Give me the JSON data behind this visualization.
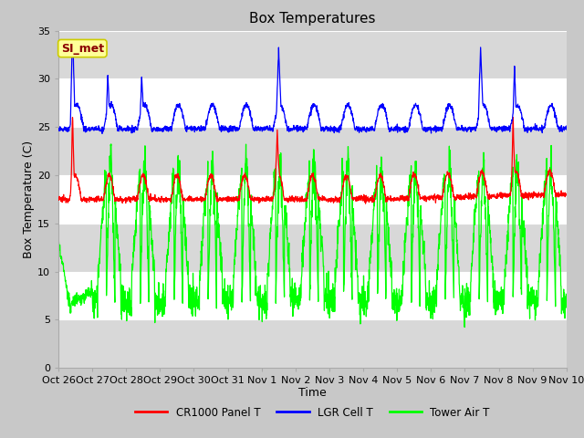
{
  "title": "Box Temperatures",
  "xlabel": "Time",
  "ylabel": "Box Temperature (C)",
  "ylim": [
    0,
    35
  ],
  "yticks": [
    0,
    5,
    10,
    15,
    20,
    25,
    30,
    35
  ],
  "fig_bg": "#c8c8c8",
  "axes_bg": "#d8d8d8",
  "band_colors": [
    "#e8e8e8",
    "#c8c8c8"
  ],
  "legend_labels": [
    "CR1000 Panel T",
    "LGR Cell T",
    "Tower Air T"
  ],
  "legend_colors": [
    "red",
    "blue",
    "#00ff00"
  ],
  "watermark_text": "SI_met",
  "watermark_fg": "#8B0000",
  "watermark_bg": "#FFFF99",
  "watermark_border": "#CCCC00",
  "tick_labels": [
    "Oct 26",
    "Oct 27",
    "Oct 28",
    "Oct 29",
    "Oct 30",
    "Oct 31",
    "Nov 1",
    "Nov 2",
    "Nov 3",
    "Nov 4",
    "Nov 5",
    "Nov 6",
    "Nov 7",
    "Nov 8",
    "Nov 9",
    "Nov 10"
  ]
}
